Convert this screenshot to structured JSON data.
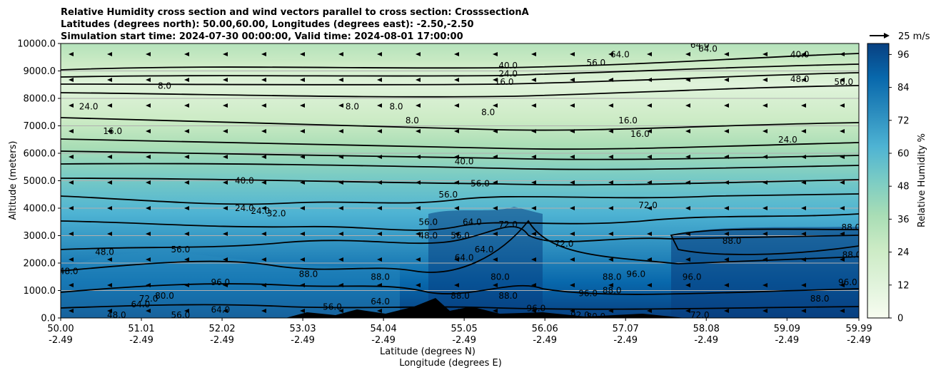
{
  "chart_data": {
    "type": "heatmap",
    "title_lines": [
      "Relative Humidity cross section and wind vectors parallel to cross section: CrosssectionA",
      "Latitudes (degrees north): 50.00,60.00, Longitudes (degrees east): -2.50,-2.50",
      "Simulation start time: 2024-07-30 00:00:00, Valid time: 2024-08-01 17:00:00"
    ],
    "ylabel": "Altitude (meters)",
    "xlabel_lat": "Latitude (degrees N)",
    "xlabel_lon": "Longitude (degrees E)",
    "ylim": [
      0,
      10000
    ],
    "xlim": [
      50.0,
      59.99
    ],
    "y_ticks": [
      "0.0",
      "1000.0",
      "2000.0",
      "3000.0",
      "4000.0",
      "5000.0",
      "6000.0",
      "7000.0",
      "8000.0",
      "9000.0",
      "10000.0"
    ],
    "x_ticks": [
      {
        "lat": "50.00",
        "lon": "-2.49"
      },
      {
        "lat": "51.01",
        "lon": "-2.49"
      },
      {
        "lat": "52.02",
        "lon": "-2.49"
      },
      {
        "lat": "53.03",
        "lon": "-2.49"
      },
      {
        "lat": "54.04",
        "lon": "-2.49"
      },
      {
        "lat": "55.05",
        "lon": "-2.49"
      },
      {
        "lat": "56.06",
        "lon": "-2.49"
      },
      {
        "lat": "57.07",
        "lon": "-2.49"
      },
      {
        "lat": "58.08",
        "lon": "-2.49"
      },
      {
        "lat": "59.09",
        "lon": "-2.49"
      },
      {
        "lat": "59.99",
        "lon": "-2.49"
      }
    ],
    "grid": "horizontal",
    "colorbar": {
      "label": "Relative Humidity %",
      "range": [
        0,
        100
      ],
      "ticks": [
        "0",
        "12",
        "24",
        "36",
        "48",
        "60",
        "72",
        "84",
        "96"
      ],
      "colormap": "GnBu",
      "colors": [
        "#f7fcf0",
        "#e0f3db",
        "#ccebc5",
        "#a8ddb5",
        "#7bccc4",
        "#4eb3d3",
        "#2b8cbe",
        "#0868ac",
        "#084081"
      ]
    },
    "wind_reference": {
      "label": "25 m/s"
    },
    "contour_labels": [
      {
        "text": "40.0",
        "lat": 55.6,
        "alt": 9200
      },
      {
        "text": "24.0",
        "lat": 55.6,
        "alt": 8900
      },
      {
        "text": "16.0",
        "lat": 55.55,
        "alt": 8600
      },
      {
        "text": "8.0",
        "lat": 51.3,
        "alt": 8450
      },
      {
        "text": "24.0",
        "lat": 50.35,
        "alt": 7700
      },
      {
        "text": "16.0",
        "lat": 50.65,
        "alt": 6800
      },
      {
        "text": "8.0",
        "lat": 53.65,
        "alt": 7700
      },
      {
        "text": "8.0",
        "lat": 54.2,
        "alt": 7700
      },
      {
        "text": "8.0",
        "lat": 54.4,
        "alt": 7200
      },
      {
        "text": "8.0",
        "lat": 55.35,
        "alt": 7500
      },
      {
        "text": "16.0",
        "lat": 57.1,
        "alt": 7200
      },
      {
        "text": "16.0",
        "lat": 57.25,
        "alt": 6700
      },
      {
        "text": "24.0",
        "lat": 59.1,
        "alt": 6500
      },
      {
        "text": "40.0",
        "lat": 55.05,
        "alt": 5700
      },
      {
        "text": "40.0",
        "lat": 52.3,
        "alt": 5000
      },
      {
        "text": "56.0",
        "lat": 55.25,
        "alt": 4900
      },
      {
        "text": "56.0",
        "lat": 54.85,
        "alt": 4500
      },
      {
        "text": "24.0",
        "lat": 52.3,
        "alt": 4000
      },
      {
        "text": "24.0",
        "lat": 52.5,
        "alt": 3900
      },
      {
        "text": "32.0",
        "lat": 52.7,
        "alt": 3800
      },
      {
        "text": "56.0",
        "lat": 54.6,
        "alt": 3500
      },
      {
        "text": "48.0",
        "lat": 54.6,
        "alt": 3000
      },
      {
        "text": "72.0",
        "lat": 55.6,
        "alt": 3400
      },
      {
        "text": "64.0",
        "lat": 55.15,
        "alt": 3500
      },
      {
        "text": "56.0",
        "lat": 55.0,
        "alt": 3000
      },
      {
        "text": "72.0",
        "lat": 56.3,
        "alt": 2700
      },
      {
        "text": "64.0",
        "lat": 55.05,
        "alt": 2200
      },
      {
        "text": "64.0",
        "lat": 55.3,
        "alt": 2500
      },
      {
        "text": "56.0",
        "lat": 51.5,
        "alt": 2500
      },
      {
        "text": "48.0",
        "lat": 50.55,
        "alt": 2400
      },
      {
        "text": "48.0",
        "lat": 50.1,
        "alt": 1700
      },
      {
        "text": "72.0",
        "lat": 57.35,
        "alt": 4100
      },
      {
        "text": "88.0",
        "lat": 58.4,
        "alt": 2800
      },
      {
        "text": "88.0",
        "lat": 59.89,
        "alt": 3300
      },
      {
        "text": "88.0",
        "lat": 59.9,
        "alt": 2300
      },
      {
        "text": "88.0",
        "lat": 53.1,
        "alt": 1600
      },
      {
        "text": "88.0",
        "lat": 54.0,
        "alt": 1500
      },
      {
        "text": "80.0",
        "lat": 55.5,
        "alt": 1500
      },
      {
        "text": "88.0",
        "lat": 56.9,
        "alt": 1500
      },
      {
        "text": "96.0",
        "lat": 57.2,
        "alt": 1600
      },
      {
        "text": "96.0",
        "lat": 57.9,
        "alt": 1500
      },
      {
        "text": "88.0",
        "lat": 55.0,
        "alt": 800
      },
      {
        "text": "88.0",
        "lat": 55.6,
        "alt": 800
      },
      {
        "text": "88.0",
        "lat": 56.9,
        "alt": 1000
      },
      {
        "text": "96.0",
        "lat": 56.6,
        "alt": 900
      },
      {
        "text": "96.0",
        "lat": 55.95,
        "alt": 350
      },
      {
        "text": "92.0",
        "lat": 56.5,
        "alt": 100
      },
      {
        "text": "80.0",
        "lat": 56.7,
        "alt": 50
      },
      {
        "text": "64.0",
        "lat": 54.0,
        "alt": 600
      },
      {
        "text": "64.0",
        "lat": 51.0,
        "alt": 500
      },
      {
        "text": "64.0",
        "lat": 52.0,
        "alt": 300
      },
      {
        "text": "56.0",
        "lat": 51.5,
        "alt": 100
      },
      {
        "text": "48.0",
        "lat": 50.7,
        "alt": 100
      },
      {
        "text": "72.0",
        "lat": 58.0,
        "alt": 100
      },
      {
        "text": "96.0",
        "lat": 52.0,
        "alt": 1300
      },
      {
        "text": "80.0",
        "lat": 51.3,
        "alt": 800
      },
      {
        "text": "72.0",
        "lat": 51.1,
        "alt": 700
      },
      {
        "text": "56.0",
        "lat": 53.4,
        "alt": 400
      },
      {
        "text": "88.0",
        "lat": 59.5,
        "alt": 700
      },
      {
        "text": "96.0",
        "lat": 59.85,
        "alt": 1300
      },
      {
        "text": "64.0",
        "lat": 58.0,
        "alt": 9950
      },
      {
        "text": "64.0",
        "lat": 57.0,
        "alt": 9600
      },
      {
        "text": "56.0",
        "lat": 56.7,
        "alt": 9300
      },
      {
        "text": "48.0",
        "lat": 59.25,
        "alt": 8700
      },
      {
        "text": "40.0",
        "lat": 59.25,
        "alt": 9600
      },
      {
        "text": "56.0",
        "lat": 59.8,
        "alt": 8600
      },
      {
        "text": "64.0",
        "lat": 58.1,
        "alt": 9800
      }
    ]
  }
}
